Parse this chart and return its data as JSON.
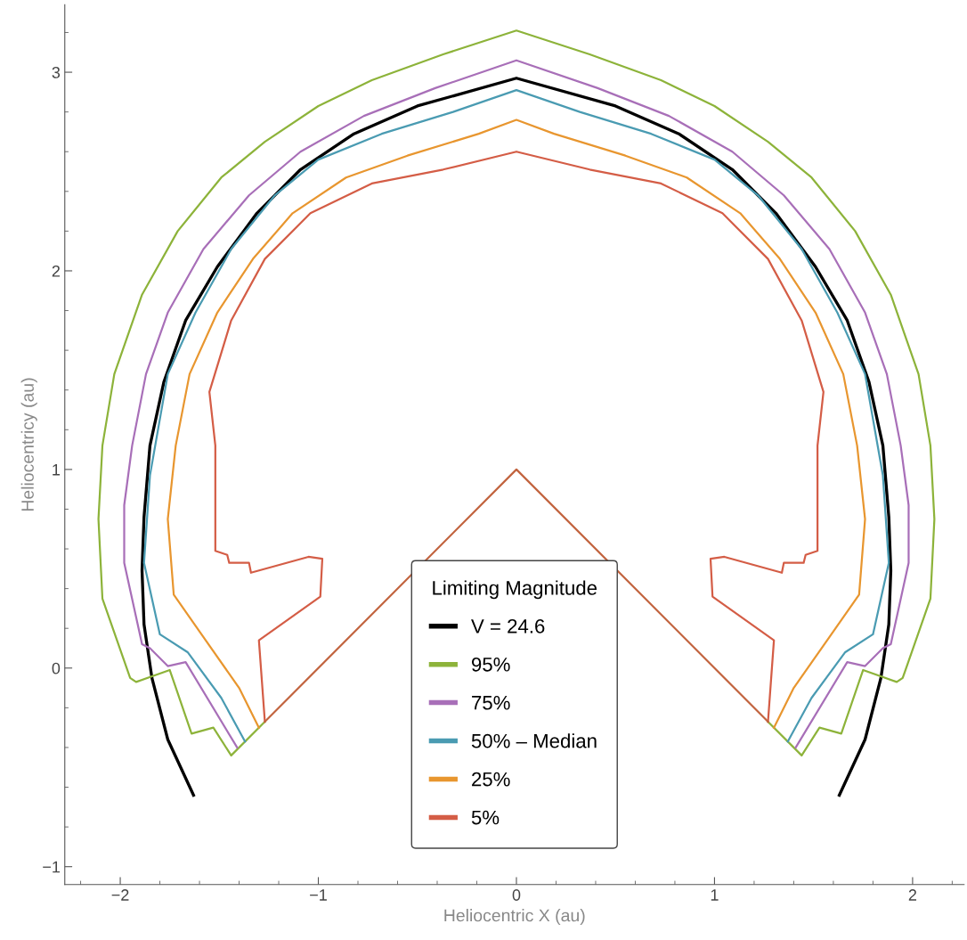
{
  "chart_data": {
    "type": "line",
    "xlabel": "Heliocentric X (au)",
    "ylabel": "Heliocentricy (au)",
    "legend_title": "Limiting Magnitude",
    "legend": "bottom",
    "grid": false,
    "marker": "none",
    "line_style": "solid",
    "xlim": [
      -2.28,
      2.26
    ],
    "ylim": [
      -1.09,
      3.34
    ],
    "xticks": [
      {
        "value": -2,
        "label": "−2"
      },
      {
        "value": -1,
        "label": "−1"
      },
      0,
      1,
      2
    ],
    "yticks": [
      {
        "value": -1,
        "label": "−1"
      },
      0,
      1,
      2,
      3
    ],
    "series": [
      {
        "name": "V = 24.6",
        "color": "#000000",
        "x": [
          -1.63,
          -1.76,
          -1.84,
          -1.88,
          -1.89,
          -1.88,
          -1.85,
          -1.78,
          -1.67,
          -1.51,
          -1.31,
          -1.09,
          -0.82,
          -0.5,
          0,
          0.5,
          0.82,
          1.09,
          1.31,
          1.51,
          1.67,
          1.78,
          1.85,
          1.88,
          1.89,
          1.88,
          1.84,
          1.76,
          1.63
        ],
        "values": [
          -0.64,
          -0.36,
          -0.05,
          0.22,
          0.49,
          0.76,
          1.12,
          1.44,
          1.75,
          2.02,
          2.29,
          2.51,
          2.69,
          2.83,
          2.97,
          2.83,
          2.69,
          2.51,
          2.29,
          2.02,
          1.75,
          1.44,
          1.12,
          0.76,
          0.49,
          0.22,
          -0.05,
          -0.36,
          -0.64
        ]
      },
      {
        "name": "95%",
        "color": "#8db33a",
        "x": [
          -1.27,
          -1.44,
          -1.53,
          -1.64,
          -1.75,
          -1.92,
          -1.95,
          -2.09,
          -2.11,
          -2.09,
          -2.03,
          -1.89,
          -1.71,
          -1.49,
          -1.27,
          -1.0,
          -0.73,
          -0.37,
          0,
          0.37,
          0.73,
          1.0,
          1.27,
          1.49,
          1.71,
          1.89,
          2.03,
          2.09,
          2.11,
          2.09,
          1.95,
          1.92,
          1.75,
          1.64,
          1.53,
          1.44,
          1.27
        ],
        "values": [
          -0.27,
          -0.44,
          -0.3,
          -0.33,
          -0.01,
          -0.07,
          -0.05,
          0.35,
          0.75,
          1.12,
          1.48,
          1.88,
          2.2,
          2.47,
          2.65,
          2.83,
          2.96,
          3.09,
          3.21,
          3.09,
          2.96,
          2.83,
          2.65,
          2.47,
          2.2,
          1.88,
          1.48,
          1.12,
          0.75,
          0.35,
          -0.05,
          -0.07,
          -0.01,
          -0.33,
          -0.3,
          -0.44,
          -0.27
        ]
      },
      {
        "name": "75%",
        "color": "#a86fb8",
        "x": [
          -1.41,
          -1.67,
          -1.76,
          -1.85,
          -1.89,
          -1.98,
          -1.98,
          -1.94,
          -1.87,
          -1.76,
          -1.58,
          -1.35,
          -1.09,
          -0.77,
          -0.41,
          0,
          0.41,
          0.77,
          1.09,
          1.35,
          1.58,
          1.76,
          1.87,
          1.94,
          1.98,
          1.98,
          1.89,
          1.85,
          1.76,
          1.67,
          1.41
        ],
        "values": [
          -0.4,
          0.03,
          0.01,
          0.1,
          0.12,
          0.53,
          0.82,
          1.12,
          1.48,
          1.79,
          2.11,
          2.38,
          2.6,
          2.78,
          2.92,
          3.06,
          2.92,
          2.78,
          2.6,
          2.38,
          2.11,
          1.79,
          1.48,
          1.12,
          0.82,
          0.53,
          0.12,
          0.1,
          0.01,
          0.03,
          -0.4
        ]
      },
      {
        "name": "50% – Median",
        "color": "#4a9bb2",
        "x": [
          -1.37,
          -1.49,
          -1.66,
          -1.8,
          -1.88,
          -1.85,
          -1.76,
          -1.62,
          -1.44,
          -1.22,
          -1.0,
          -0.68,
          -0.32,
          0,
          0.32,
          0.68,
          1.0,
          1.22,
          1.44,
          1.62,
          1.76,
          1.85,
          1.88,
          1.8,
          1.66,
          1.49,
          1.37
        ],
        "values": [
          -0.37,
          -0.15,
          0.08,
          0.17,
          0.53,
          0.97,
          1.48,
          1.79,
          2.11,
          2.38,
          2.56,
          2.69,
          2.8,
          2.91,
          2.8,
          2.69,
          2.56,
          2.38,
          2.11,
          1.79,
          1.48,
          0.97,
          0.53,
          0.17,
          0.08,
          -0.15,
          -0.37
        ]
      },
      {
        "name": "25%",
        "color": "#e8962f",
        "x": [
          -1.3,
          -1.4,
          -1.59,
          -1.73,
          -1.76,
          -1.72,
          -1.65,
          -1.51,
          -1.33,
          -1.13,
          -0.86,
          -0.55,
          -0.19,
          0,
          0.19,
          0.55,
          0.86,
          1.13,
          1.33,
          1.51,
          1.65,
          1.72,
          1.76,
          1.73,
          1.59,
          1.4,
          1.3
        ],
        "values": [
          -0.3,
          -0.1,
          0.17,
          0.37,
          0.75,
          1.12,
          1.48,
          1.79,
          2.06,
          2.29,
          2.47,
          2.58,
          2.69,
          2.76,
          2.69,
          2.58,
          2.47,
          2.29,
          2.06,
          1.79,
          1.48,
          1.12,
          0.75,
          0.37,
          0.17,
          -0.1,
          -0.3
        ]
      },
      {
        "name": "5%",
        "color": "#d45d46",
        "x": [
          -1.27,
          -1.3,
          -0.99,
          -0.98,
          -1.05,
          -1.34,
          -1.35,
          -1.45,
          -1.46,
          -1.52,
          -1.52,
          -1.55,
          -1.44,
          -1.27,
          -1.04,
          -0.73,
          -0.37,
          0,
          0.37,
          0.73,
          1.04,
          1.27,
          1.44,
          1.55,
          1.52,
          1.52,
          1.46,
          1.45,
          1.35,
          1.34,
          1.05,
          0.98,
          0.99,
          1.3,
          1.27
        ],
        "values": [
          -0.27,
          0.14,
          0.36,
          0.55,
          0.56,
          0.48,
          0.53,
          0.53,
          0.57,
          0.59,
          1.12,
          1.39,
          1.75,
          2.06,
          2.29,
          2.44,
          2.51,
          2.6,
          2.51,
          2.44,
          2.29,
          2.06,
          1.75,
          1.39,
          1.12,
          0.59,
          0.57,
          0.53,
          0.53,
          0.48,
          0.56,
          0.55,
          0.36,
          0.14,
          -0.27
        ]
      },
      {
        "color": "#c2643f",
        "x": [
          -1.27,
          0,
          1.27
        ],
        "values": [
          -0.27,
          1,
          -0.27
        ]
      }
    ]
  }
}
